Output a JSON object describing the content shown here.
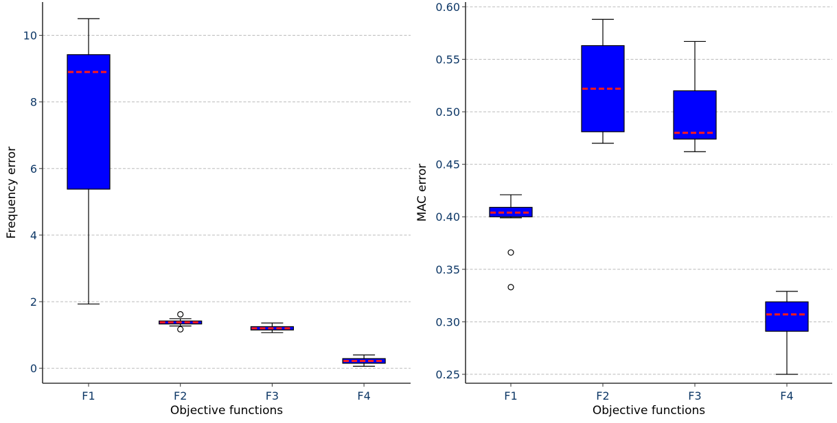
{
  "chart_data": [
    {
      "type": "box",
      "xlabel": "Objective functions",
      "ylabel": "Frequency error",
      "categories": [
        "F1",
        "F2",
        "F3",
        "F4"
      ],
      "ylim": [
        -0.45,
        11.0
      ],
      "yticks": [
        0,
        2,
        4,
        6,
        8,
        10
      ],
      "ytick_labels": [
        "0",
        "2",
        "4",
        "6",
        "8",
        "10"
      ],
      "grid": "horizontal-dashed",
      "boxes": [
        {
          "category": "F1",
          "whisker_low": 1.93,
          "q1": 5.38,
          "median": 8.9,
          "q3": 9.42,
          "whisker_high": 10.5,
          "outliers": []
        },
        {
          "category": "F2",
          "whisker_low": 1.27,
          "q1": 1.33,
          "median": 1.38,
          "q3": 1.42,
          "whisker_high": 1.49,
          "outliers": [
            1.62,
            1.17
          ]
        },
        {
          "category": "F3",
          "whisker_low": 1.07,
          "q1": 1.15,
          "median": 1.2,
          "q3": 1.25,
          "whisker_high": 1.36,
          "outliers": []
        },
        {
          "category": "F4",
          "whisker_low": 0.06,
          "q1": 0.15,
          "median": 0.22,
          "q3": 0.29,
          "whisker_high": 0.4,
          "outliers": []
        }
      ]
    },
    {
      "type": "box",
      "xlabel": "Objective functions",
      "ylabel": "MAC error",
      "categories": [
        "F1",
        "F2",
        "F3",
        "F4"
      ],
      "ylim": [
        0.2415,
        0.6045
      ],
      "yticks": [
        0.25,
        0.3,
        0.35,
        0.4,
        0.45,
        0.5,
        0.55,
        0.6
      ],
      "ytick_labels": [
        "0.25",
        "0.30",
        "0.35",
        "0.40",
        "0.45",
        "0.50",
        "0.55",
        "0.60"
      ],
      "grid": "horizontal-dashed",
      "boxes": [
        {
          "category": "F1",
          "whisker_low": 0.399,
          "q1": 0.4,
          "median": 0.404,
          "q3": 0.409,
          "whisker_high": 0.421,
          "outliers": [
            0.366,
            0.333
          ]
        },
        {
          "category": "F2",
          "whisker_low": 0.47,
          "q1": 0.481,
          "median": 0.522,
          "q3": 0.563,
          "whisker_high": 0.588,
          "outliers": []
        },
        {
          "category": "F3",
          "whisker_low": 0.462,
          "q1": 0.474,
          "median": 0.48,
          "q3": 0.52,
          "whisker_high": 0.567,
          "outliers": []
        },
        {
          "category": "F4",
          "whisker_low": 0.25,
          "q1": 0.291,
          "median": 0.307,
          "q3": 0.319,
          "whisker_high": 0.329,
          "outliers": []
        }
      ]
    }
  ],
  "colors": {
    "box_fill": "#0000ff",
    "median_line": "#ff1a1a",
    "tick_label": "#0d3766",
    "axis_label": "#000000",
    "grid": "#b0b0b0",
    "axis": "#333333"
  }
}
